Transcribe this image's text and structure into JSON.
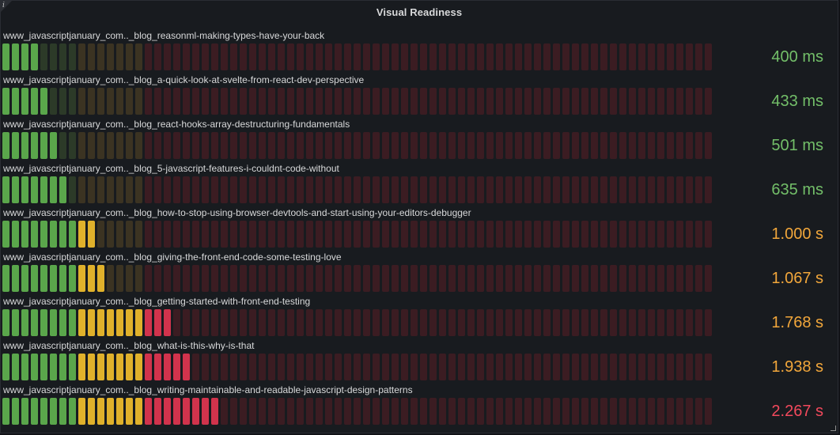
{
  "panel": {
    "title": "Visual Readiness",
    "info_icon": "info-icon",
    "resize_icon": "resize-handle-icon"
  },
  "gauge": {
    "total_cells": 75,
    "min_ms": 0,
    "max_ms": 7500,
    "thresholds_ms": [
      0,
      800,
      1500,
      2000
    ],
    "zone_colors_dim": [
      "#2c3a28",
      "#3b3322",
      "#3b1c22",
      "#3b1c22"
    ],
    "zone_colors_lit": [
      "#5aa64b",
      "#e0b12b",
      "#d1334c",
      "#d1334c"
    ]
  },
  "rows": [
    {
      "label": "www_javascriptjanuary_com.._blog_reasonml-making-types-have-your-back",
      "value_ms": 400,
      "display": "400 ms",
      "color": "#73bf69"
    },
    {
      "label": "www_javascriptjanuary_com.._blog_a-quick-look-at-svelte-from-react-dev-perspective",
      "value_ms": 433,
      "display": "433 ms",
      "color": "#73bf69"
    },
    {
      "label": "www_javascriptjanuary_com.._blog_react-hooks-array-destructuring-fundamentals",
      "value_ms": 501,
      "display": "501 ms",
      "color": "#73bf69"
    },
    {
      "label": "www_javascriptjanuary_com.._blog_5-javascript-features-i-couldnt-code-without",
      "value_ms": 635,
      "display": "635 ms",
      "color": "#73bf69"
    },
    {
      "label": "www_javascriptjanuary_com.._blog_how-to-stop-using-browser-devtools-and-start-using-your-editors-debugger",
      "value_ms": 1000,
      "display": "1.000 s",
      "color": "#f2a73b"
    },
    {
      "label": "www_javascriptjanuary_com.._blog_giving-the-front-end-code-some-testing-love",
      "value_ms": 1067,
      "display": "1.067 s",
      "color": "#f2a73b"
    },
    {
      "label": "www_javascriptjanuary_com.._blog_getting-started-with-front-end-testing",
      "value_ms": 1768,
      "display": "1.768 s",
      "color": "#f2a73b"
    },
    {
      "label": "www_javascriptjanuary_com.._blog_what-is-this-why-is-that",
      "value_ms": 1938,
      "display": "1.938 s",
      "color": "#f2a73b"
    },
    {
      "label": "www_javascriptjanuary_com.._blog_writing-maintainable-and-readable-javascript-design-patterns",
      "value_ms": 2267,
      "display": "2.267 s",
      "color": "#f2495c"
    }
  ]
}
